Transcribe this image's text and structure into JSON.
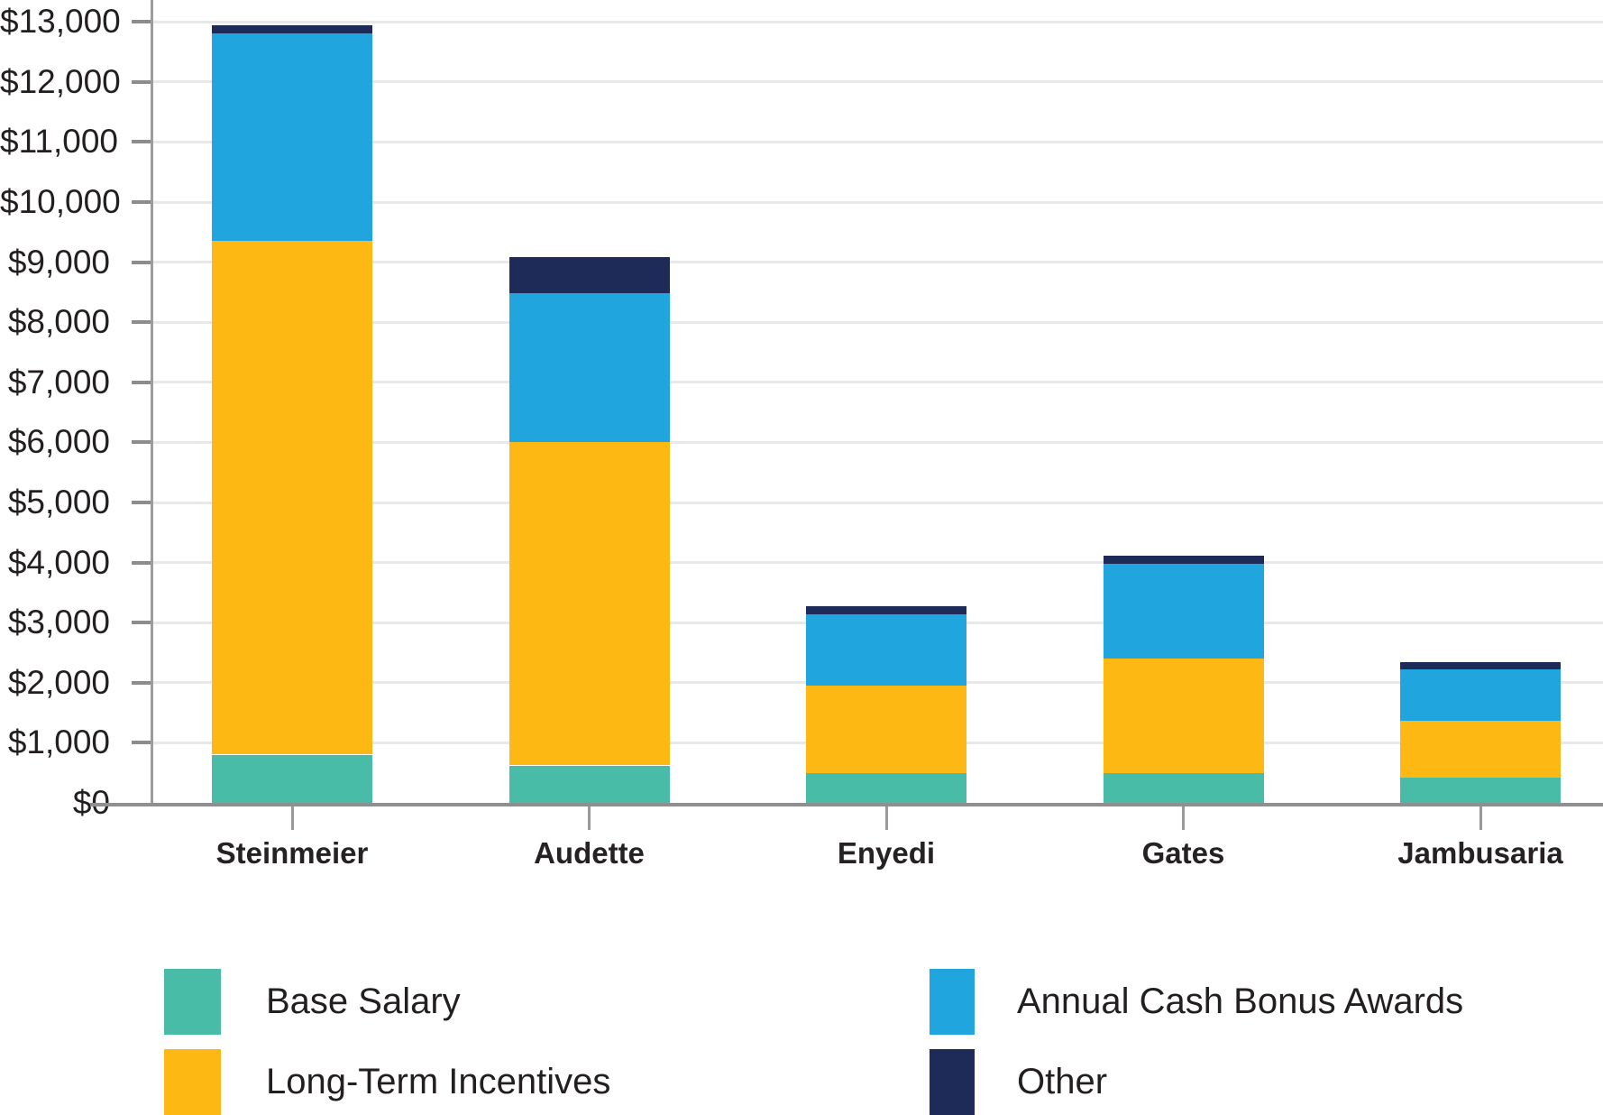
{
  "chart_data": {
    "type": "bar",
    "stacked": true,
    "title": "",
    "xlabel": "",
    "ylabel": "",
    "categories": [
      "Steinmeier",
      "Audette",
      "Enyedi",
      "Gates",
      "Jambusaria"
    ],
    "series": [
      {
        "name": "Base Salary",
        "color": "#49BCA8",
        "values": [
          800,
          620,
          500,
          500,
          420
        ]
      },
      {
        "name": "Long-Term Incentives",
        "color": "#FDB813",
        "values": [
          8550,
          5380,
          1450,
          1900,
          950
        ]
      },
      {
        "name": "Annual Cash Bonus Awards",
        "color": "#21A5DE",
        "values": [
          3470,
          2480,
          1200,
          1580,
          850
        ]
      },
      {
        "name": "Other",
        "color": "#1E2B58",
        "values": [
          130,
          600,
          130,
          130,
          120
        ]
      }
    ],
    "stack_totals": [
      12950,
      9080,
      3280,
      4110,
      2340
    ],
    "y_axis": {
      "tick_labels": [
        "$0",
        "$1,000",
        "$2,000",
        "$3,000",
        "$4,000",
        "$5,000",
        "$6,000",
        "$7,000",
        "$8,000",
        "$9,000",
        "$10,000",
        "$11,000",
        "$12,000",
        "$13,000"
      ],
      "tick_values": [
        0,
        1000,
        2000,
        3000,
        4000,
        5000,
        6000,
        7000,
        8000,
        9000,
        10000,
        11000,
        12000,
        13000
      ],
      "tick_interval": 1000
    },
    "ylim": [
      0,
      13380
    ],
    "grid": true,
    "legend_position": "bottom",
    "legend_columns": [
      [
        "Base Salary",
        "Long-Term Incentives"
      ],
      [
        "Annual Cash Bonus Awards",
        "Other"
      ]
    ],
    "style_colors": {
      "gridline": "#E8E8EA",
      "axis": "#8F8F8F",
      "text": "#231F20"
    }
  }
}
